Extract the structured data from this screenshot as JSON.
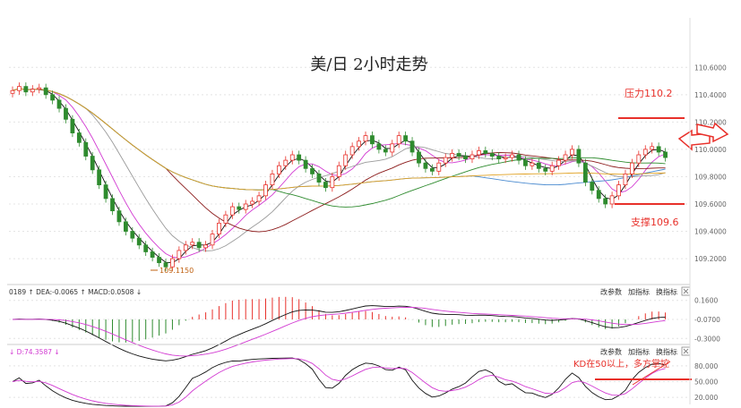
{
  "chart_data": [
    {
      "type": "candlestick",
      "title": "美/日 2小时走势",
      "ylim": [
        109.05,
        110.7
      ],
      "y_ticks": [
        "110.6000",
        "110.4000",
        "110.2000",
        "110.0000",
        "109.8000",
        "109.6000",
        "109.4000",
        "109.2000"
      ],
      "y_tick_values": [
        110.6,
        110.4,
        110.2,
        110.0,
        109.8,
        109.6,
        109.4,
        109.2
      ],
      "low_label": "109.1150",
      "low_value": 109.115,
      "annotations": [
        {
          "text": "压力110.2",
          "value": 110.2,
          "color": "#e8302a"
        },
        {
          "text": "支撑109.6",
          "value": 109.6,
          "color": "#e8302a"
        }
      ],
      "candles_close": [
        110.43,
        110.46,
        110.42,
        110.44,
        110.45,
        110.4,
        110.36,
        110.3,
        110.22,
        110.12,
        110.05,
        109.95,
        109.85,
        109.74,
        109.64,
        109.55,
        109.47,
        109.4,
        109.35,
        109.3,
        109.25,
        109.21,
        109.17,
        109.14,
        109.2,
        109.26,
        109.3,
        109.32,
        109.28,
        109.3,
        109.38,
        109.46,
        109.52,
        109.58,
        109.56,
        109.6,
        109.62,
        109.66,
        109.74,
        109.82,
        109.88,
        109.92,
        109.96,
        109.92,
        109.86,
        109.82,
        109.76,
        109.72,
        109.8,
        109.88,
        109.96,
        110.02,
        110.06,
        110.1,
        110.04,
        110.0,
        109.98,
        110.04,
        110.1,
        110.06,
        109.98,
        109.9,
        109.86,
        109.84,
        109.9,
        109.94,
        109.97,
        109.95,
        109.93,
        109.96,
        109.99,
        109.97,
        109.95,
        109.93,
        109.94,
        109.96,
        109.92,
        109.88,
        109.9,
        109.86,
        109.84,
        109.88,
        109.92,
        109.96,
        110.0,
        109.9,
        109.76,
        109.7,
        109.64,
        109.6,
        109.66,
        109.74,
        109.82,
        109.9,
        109.96,
        110.0,
        110.02,
        109.98,
        109.94
      ]
    },
    {
      "type": "line",
      "title": "MACD",
      "header": "0189 ↑ DEA:-0.0065 ↑ MACD:0.0508 ↓",
      "y_ticks": [
        "0.1600",
        "-0.0700",
        "-0.3000"
      ],
      "y_tick_values": [
        0.16,
        -0.07,
        -0.3
      ],
      "buttons": [
        "改参数",
        "加指标",
        "换指标"
      ]
    },
    {
      "type": "line",
      "title": "KD",
      "header": "↓ D:74.3587 ↓",
      "y_ticks": [
        "80.000",
        "50.000",
        "20.000"
      ],
      "y_tick_values": [
        80,
        50,
        20
      ],
      "buttons": [
        "改参数",
        "加指标",
        "换指标"
      ],
      "annotation": "KD在50以上，多方掌控",
      "reference_value": 50
    }
  ],
  "colors": {
    "up": "#e8302a",
    "down": "#2e8b2e",
    "annotation": "#e8302a",
    "axis_text": "#666666",
    "k_line": "#111111",
    "d_line": "#d23ad2"
  }
}
